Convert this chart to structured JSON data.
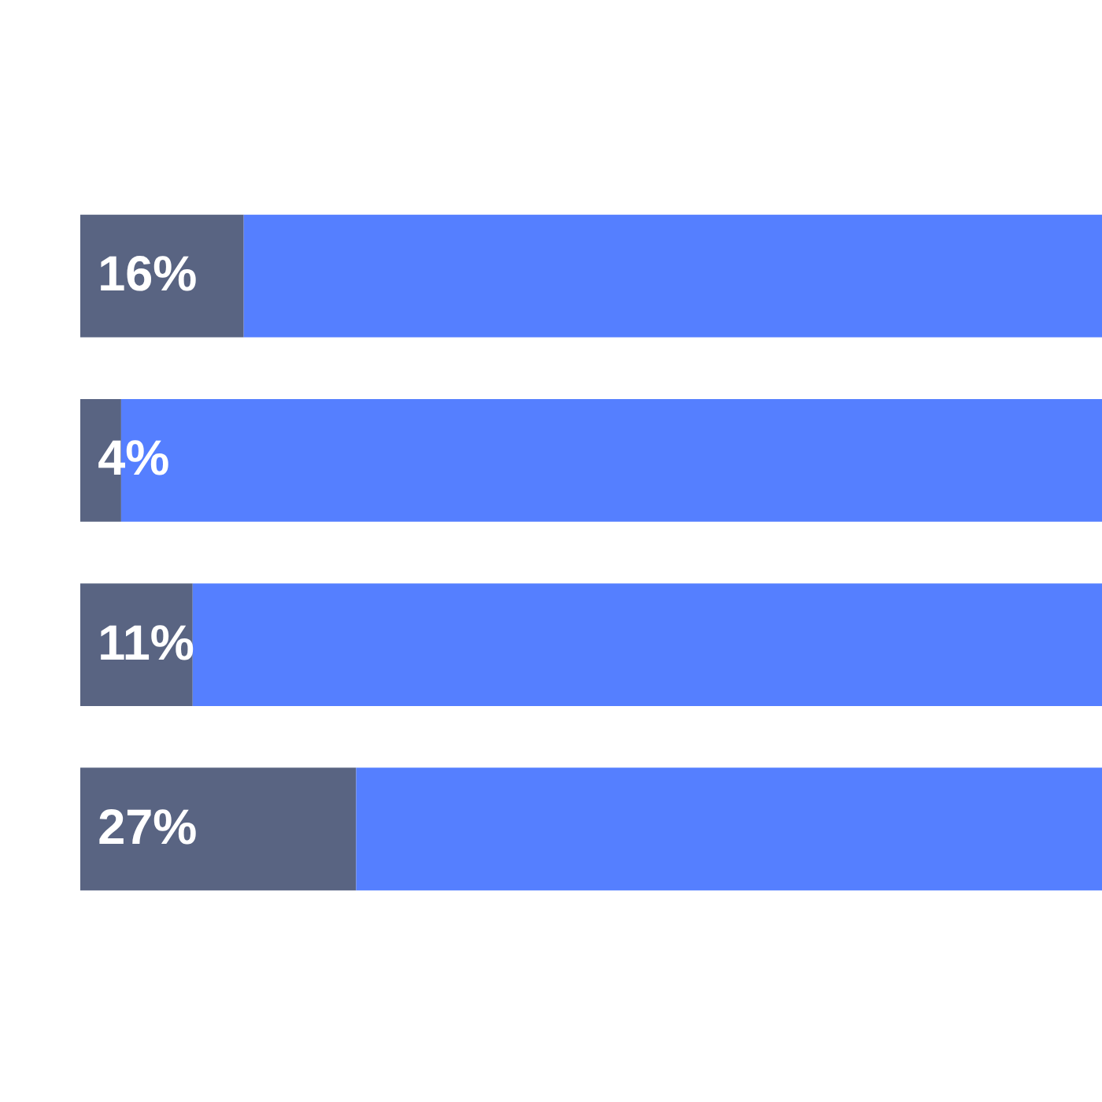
{
  "chart_data": {
    "type": "bar",
    "orientation": "horizontal",
    "stacked": true,
    "categories": [
      null,
      null,
      null,
      null
    ],
    "series": [
      {
        "color": "#596482",
        "values": [
          16,
          4,
          11,
          27
        ],
        "value_labels": [
          "16%",
          "4%",
          "11%",
          "27%"
        ]
      },
      {
        "color": "#557fff",
        "values": [
          84,
          96,
          89,
          73
        ]
      }
    ]
  }
}
